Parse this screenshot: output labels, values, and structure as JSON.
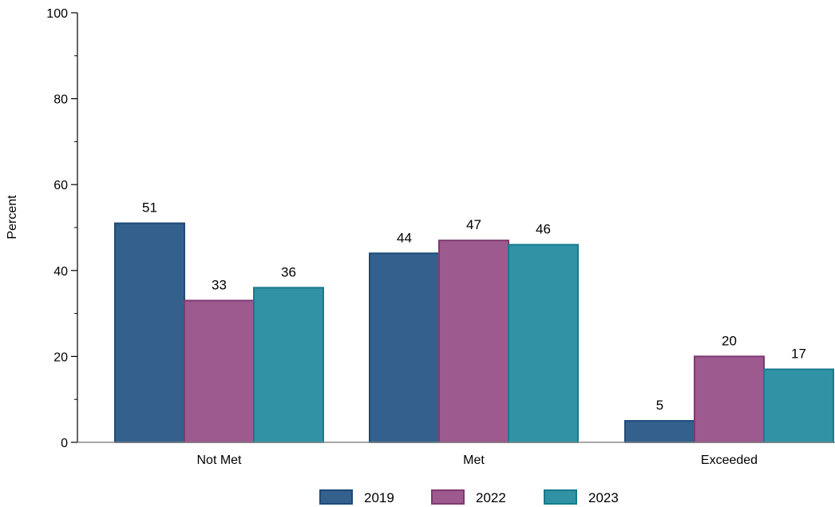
{
  "chart_data": {
    "type": "bar",
    "ylabel": "Percent",
    "xlabel": "",
    "ylim": [
      0,
      100
    ],
    "yticks": [
      0,
      20,
      40,
      60,
      80,
      100
    ],
    "categories": [
      "Not Met",
      "Met",
      "Exceeded"
    ],
    "series": [
      {
        "name": "2019",
        "values": [
          51,
          44,
          5
        ],
        "color": "#33608C",
        "stroke": "#1E4A78"
      },
      {
        "name": "2022",
        "values": [
          33,
          47,
          20
        ],
        "color": "#9C5A8E",
        "stroke": "#7E3A72"
      },
      {
        "name": "2023",
        "values": [
          36,
          46,
          17
        ],
        "color": "#3192A6",
        "stroke": "#197A8E"
      }
    ],
    "grid": false,
    "legend": "bottom-center",
    "data_labels": true
  }
}
